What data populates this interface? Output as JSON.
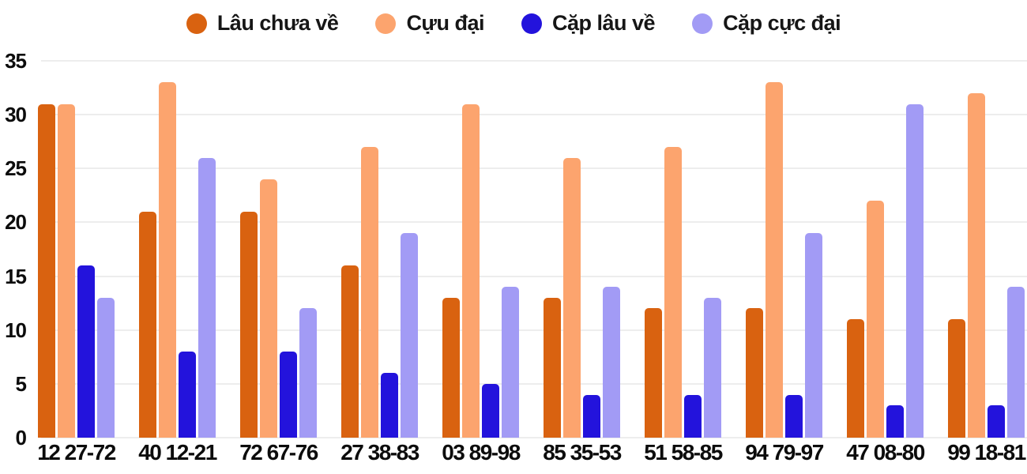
{
  "chart_data": {
    "type": "bar",
    "title": "",
    "xlabel": "",
    "ylabel": "",
    "categories": [
      "12 27-72",
      "40 12-21",
      "72 67-76",
      "27 38-83",
      "03 89-98",
      "85 35-53",
      "51 58-85",
      "94 79-97",
      "47 08-80",
      "99 18-81"
    ],
    "series": [
      {
        "name": "Lâu chưa về",
        "color": "#d96210",
        "values": [
          31,
          21,
          21,
          16,
          13,
          13,
          12,
          12,
          11,
          11
        ]
      },
      {
        "name": "Cựu đại",
        "color": "#fca46e",
        "values": [
          31,
          33,
          24,
          27,
          31,
          26,
          27,
          33,
          22,
          32
        ]
      },
      {
        "name": "Cặp lâu về",
        "color": "#2313dc",
        "values": [
          16,
          8,
          8,
          6,
          5,
          4,
          4,
          4,
          3,
          3
        ]
      },
      {
        "name": "Cặp cực đại",
        "color": "#a29bf5",
        "values": [
          13,
          26,
          12,
          19,
          14,
          14,
          13,
          19,
          31,
          14
        ]
      }
    ],
    "ylim": [
      0,
      35
    ],
    "yticks": [
      0,
      5,
      10,
      15,
      20,
      25,
      30,
      35
    ],
    "ytick_labels": [
      "0",
      "5",
      "10",
      "15",
      "20",
      "25",
      "30",
      "35"
    ],
    "grid": true,
    "grid_color": "#ededed",
    "axis_text_color": "#0c0c0c",
    "background": "#ffffff",
    "legend_position": "top"
  }
}
